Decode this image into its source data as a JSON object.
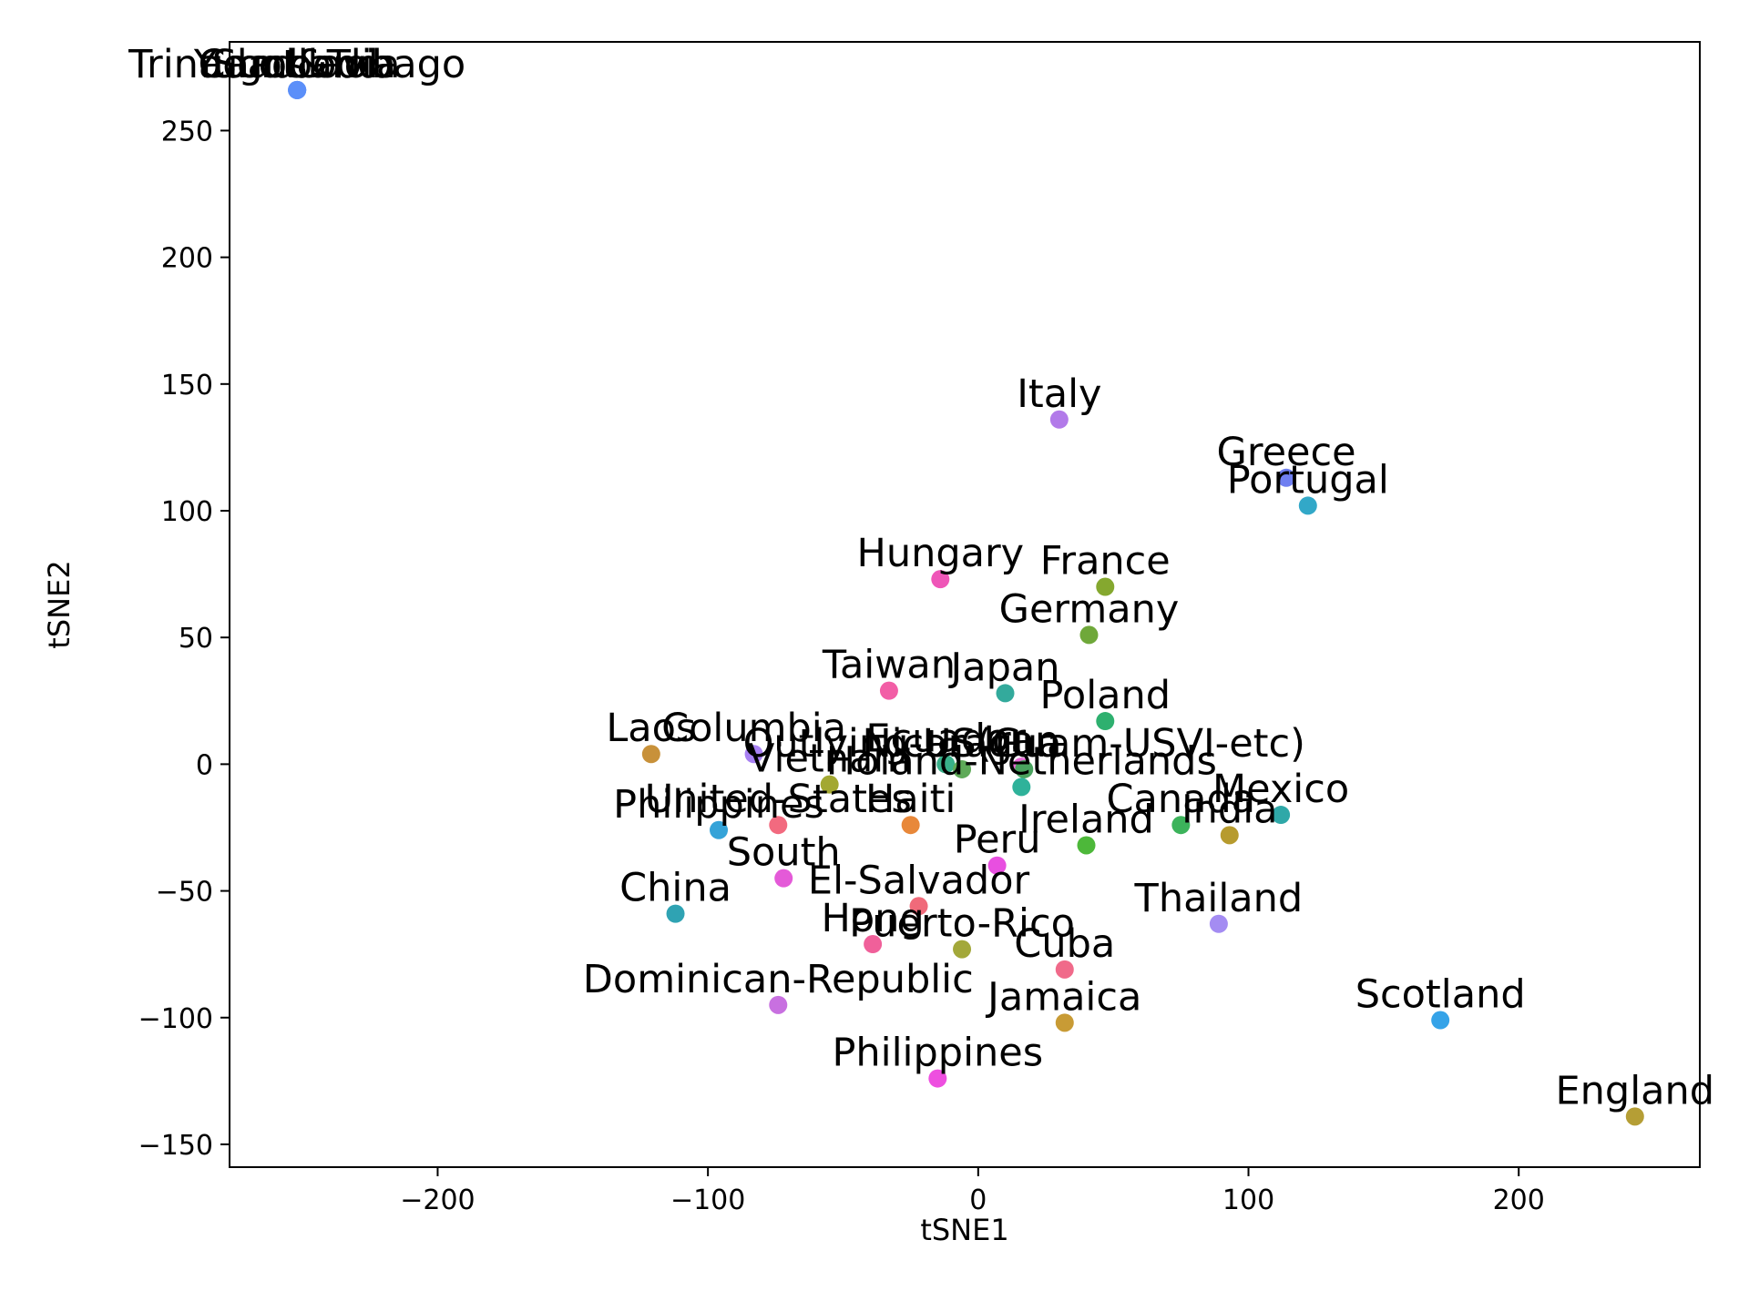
{
  "chart_data": {
    "type": "scatter",
    "xlabel": "tSNE1",
    "ylabel": "tSNE2",
    "xlim": [
      -277,
      267
    ],
    "ylim": [
      -159,
      285
    ],
    "xticks": [
      -200,
      -100,
      0,
      100,
      200
    ],
    "yticks": [
      -150,
      -100,
      -50,
      0,
      50,
      100,
      150,
      200,
      250
    ],
    "grid": false,
    "legend": "none",
    "points": [
      {
        "label": "Trinadad&Tobago",
        "x": -252,
        "y": 266,
        "color": "#5b8ff9"
      },
      {
        "label": "Cambodia",
        "x": -252,
        "y": 266,
        "color": "#5b8ff9"
      },
      {
        "label": "Yugoslavia",
        "x": -252,
        "y": 266,
        "color": "#5b8ff9"
      },
      {
        "label": "Scotland",
        "x": -252,
        "y": 266,
        "color": "#5b8ff9"
      },
      {
        "label": "Italy",
        "x": 30,
        "y": 136,
        "color": "#b27ae9"
      },
      {
        "label": "Greece",
        "x": 114,
        "y": 113,
        "color": "#6f7ff0"
      },
      {
        "label": "Portugal",
        "x": 122,
        "y": 102,
        "color": "#32a8c8"
      },
      {
        "label": "Hungary",
        "x": -14,
        "y": 73,
        "color": "#ef56b8"
      },
      {
        "label": "France",
        "x": 47,
        "y": 70,
        "color": "#85a82f"
      },
      {
        "label": "Germany",
        "x": 41,
        "y": 51,
        "color": "#6fa83a"
      },
      {
        "label": "Taiwan",
        "x": -33,
        "y": 29,
        "color": "#f25ea6"
      },
      {
        "label": "Japan",
        "x": 10,
        "y": 28,
        "color": "#33aa9c"
      },
      {
        "label": "Poland",
        "x": 47,
        "y": 17,
        "color": "#2eb06f"
      },
      {
        "label": "Laos",
        "x": -121,
        "y": 4,
        "color": "#c8913a"
      },
      {
        "label": "Columbia",
        "x": -83,
        "y": 4,
        "color": "#a881f2"
      },
      {
        "label": "Ecuador",
        "x": -12,
        "y": 0,
        "color": "#39b08a"
      },
      {
        "label": "Iran",
        "x": 16,
        "y": -1,
        "color": "#e86bd8"
      },
      {
        "label": "Outlying-US(Guam-USVI-etc)",
        "x": 17,
        "y": -2,
        "color": "#4aa35f"
      },
      {
        "label": "Nicaragua",
        "x": -6,
        "y": -2,
        "color": "#5eaa58"
      },
      {
        "label": "Vietnam",
        "x": -55,
        "y": -8,
        "color": "#a3a832"
      },
      {
        "label": "Holand-Netherlands",
        "x": 16,
        "y": -9,
        "color": "#2fb29a"
      },
      {
        "label": "United-States",
        "x": -74,
        "y": -24,
        "color": "#f26a7f"
      },
      {
        "label": "Haiti",
        "x": -25,
        "y": -24,
        "color": "#e8883a"
      },
      {
        "label": "Canada",
        "x": 75,
        "y": -24,
        "color": "#3cb35b"
      },
      {
        "label": "Mexico",
        "x": 112,
        "y": -20,
        "color": "#2fa8a8"
      },
      {
        "label": "India",
        "x": 93,
        "y": -28,
        "color": "#b79b2e"
      },
      {
        "label": "Ireland",
        "x": 40,
        "y": -32,
        "color": "#4db83a"
      },
      {
        "label": "Peru",
        "x": 7,
        "y": -40,
        "color": "#e84fe0"
      },
      {
        "label": "South",
        "x": -72,
        "y": -45,
        "color": "#e45ad8"
      },
      {
        "label": "Philippines",
        "x": -96,
        "y": -26,
        "color": "#35a3d8"
      },
      {
        "label": "El-Salvador",
        "x": -22,
        "y": -56,
        "color": "#f06a7a"
      },
      {
        "label": "China",
        "x": -112,
        "y": -59,
        "color": "#2fa3b3"
      },
      {
        "label": "Hong",
        "x": -39,
        "y": -71,
        "color": "#f0609a"
      },
      {
        "label": "Puerto-Rico",
        "x": -6,
        "y": -73,
        "color": "#a3a83a"
      },
      {
        "label": "Thailand",
        "x": 89,
        "y": -63,
        "color": "#a48cf2"
      },
      {
        "label": "Cuba",
        "x": 32,
        "y": -81,
        "color": "#f06a8a"
      },
      {
        "label": "Dominican-Republic",
        "x": -74,
        "y": -95,
        "color": "#c870e0"
      },
      {
        "label": "Jamaica",
        "x": 32,
        "y": -102,
        "color": "#c89b35"
      },
      {
        "label": "Scotland",
        "x": 171,
        "y": -101,
        "color": "#35a3e8"
      },
      {
        "label": "Philippines",
        "x": -15,
        "y": -124,
        "color": "#ee4fe0"
      },
      {
        "label": "England",
        "x": 243,
        "y": -139,
        "color": "#b59e35"
      }
    ]
  }
}
